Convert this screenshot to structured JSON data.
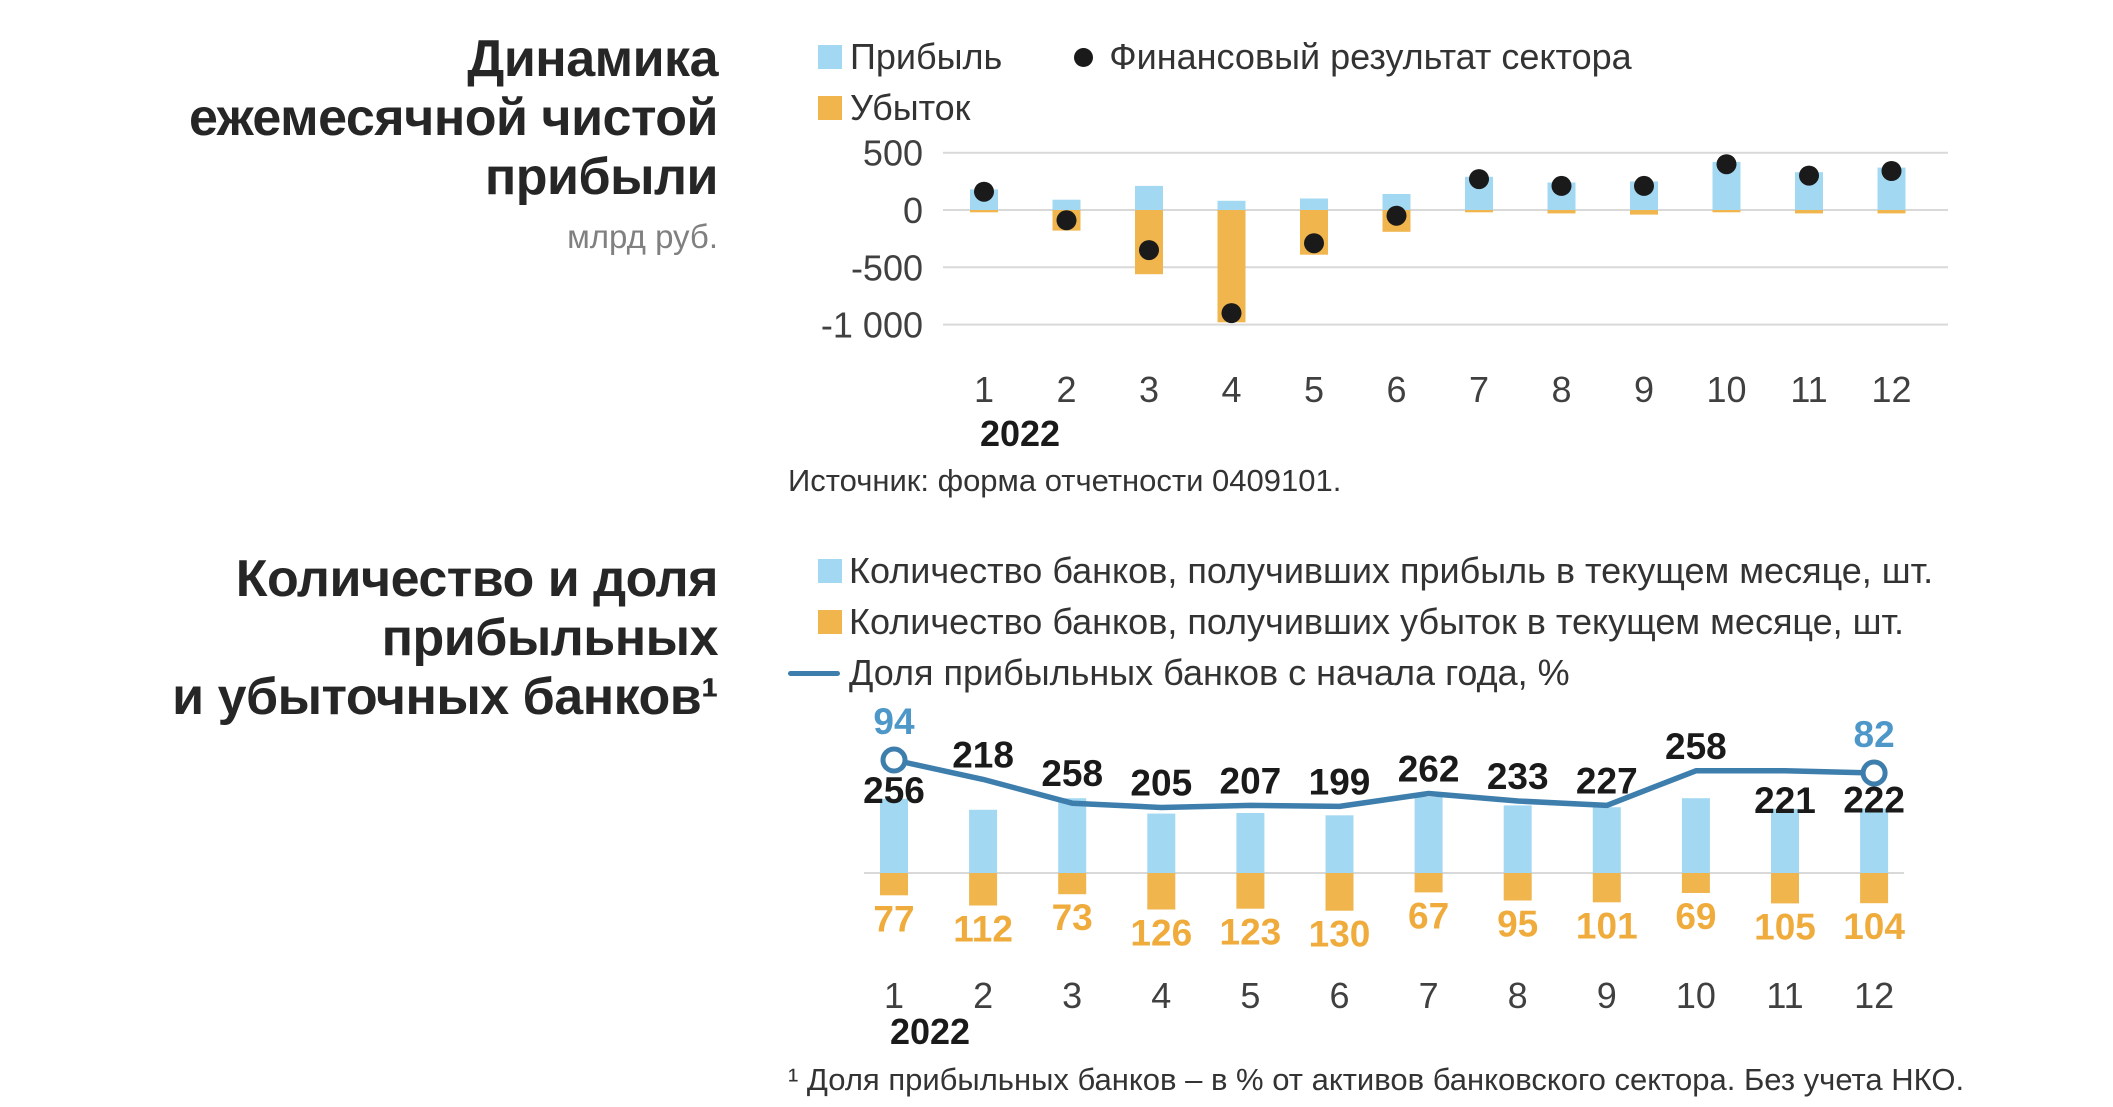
{
  "colors": {
    "profit_blue": "#A3D8F3",
    "loss_orange": "#F0B54D",
    "dot_black": "#1A1A1A",
    "line_blue": "#3E7EAD",
    "line_label_blue": "#4D97C9",
    "orange_label": "#EFAC3D",
    "grid_gray": "#D9D9D9"
  },
  "section1": {
    "title": "Динамика\nежемесячной чистой\nприбыли",
    "unit": "млрд руб.",
    "source": "Источник: форма отчетности 0409101."
  },
  "section2": {
    "title": "Количество и доля\nприбыльных\nи убыточных банков¹",
    "footnote": "¹ Доля прибыльных банков – в % от активов банковского сектора. Без учета НКО."
  },
  "chart_data": [
    {
      "type": "bar",
      "title": "Динамика ежемесячной чистой прибыли",
      "ylabel": "млрд руб.",
      "categories": [
        "1",
        "2",
        "3",
        "4",
        "5",
        "6",
        "7",
        "8",
        "9",
        "10",
        "11",
        "12"
      ],
      "x_axis_year": "2022",
      "yticks": [
        {
          "value": 500,
          "label": "500"
        },
        {
          "value": 0,
          "label": "0"
        },
        {
          "value": -500,
          "label": "-500"
        },
        {
          "value": -1000,
          "label": "-1 000"
        }
      ],
      "ylim": [
        -1100,
        550
      ],
      "grid": true,
      "legend_position": "top",
      "source": "Источник: форма отчетности 0409101.",
      "series": [
        {
          "name": "Прибыль",
          "type": "bar",
          "color": "#A3D8F3",
          "values": [
            180,
            90,
            210,
            80,
            100,
            140,
            290,
            240,
            250,
            420,
            330,
            370
          ]
        },
        {
          "name": "Убыток",
          "type": "bar",
          "color": "#F0B54D",
          "values": [
            -20,
            -180,
            -560,
            -980,
            -390,
            -190,
            -20,
            -30,
            -40,
            -20,
            -30,
            -30
          ]
        },
        {
          "name": "Финансовый результат сектора",
          "type": "scatter",
          "color": "#1A1A1A",
          "values": [
            160,
            -90,
            -350,
            -900,
            -290,
            -50,
            270,
            210,
            210,
            400,
            300,
            340
          ]
        }
      ]
    },
    {
      "type": "bar",
      "title": "Количество и доля прибыльных и убыточных банков",
      "categories": [
        "1",
        "2",
        "3",
        "4",
        "5",
        "6",
        "7",
        "8",
        "9",
        "10",
        "11",
        "12"
      ],
      "x_axis_year": "2022",
      "legend_position": "top",
      "footnote": "¹ Доля прибыльных банков – в % от активов банковского сектора. Без учета НКО.",
      "series": [
        {
          "name": "Количество банков, получивших прибыль в текущем месяце, шт.",
          "type": "bar",
          "color": "#A3D8F3",
          "values": [
            256,
            218,
            258,
            205,
            207,
            199,
            262,
            233,
            227,
            258,
            221,
            222
          ]
        },
        {
          "name": "Количество банков, получивших убыток в текущем месяце, шт.",
          "type": "bar",
          "color": "#F0B54D",
          "values": [
            77,
            112,
            73,
            126,
            123,
            130,
            67,
            95,
            101,
            69,
            105,
            104
          ],
          "label_color": "#EFAC3D"
        },
        {
          "name": "Доля прибыльных банков с начала года, %",
          "type": "line",
          "color": "#3E7EAD",
          "values": [
            94,
            76,
            54,
            50,
            52,
            51,
            63,
            56,
            52,
            84,
            84,
            82
          ],
          "labeled_points": {
            "first": "94",
            "last": "82"
          },
          "label_color": "#4D97C9"
        }
      ]
    }
  ]
}
